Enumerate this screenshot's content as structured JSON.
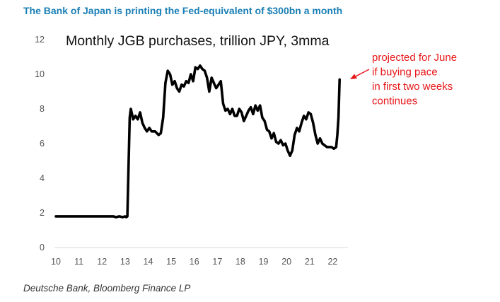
{
  "headline": "The Bank of Japan is printing the Fed-equivalent of $300bn a month",
  "source": "Deutsche Bank, Bloomberg Finance LP",
  "colors": {
    "headline": "#1a7fb5",
    "line": "#000000",
    "annotation": "#e8191b",
    "tick_text": "#555555"
  },
  "chart_data": {
    "type": "line",
    "title": "Monthly JGB purchases, trillion JPY, 3mma",
    "xlabel": "",
    "ylabel": "",
    "xlim": [
      10,
      22.6
    ],
    "ylim": [
      0,
      12
    ],
    "x_ticks": [
      10,
      11,
      12,
      13,
      14,
      15,
      16,
      17,
      18,
      19,
      20,
      21,
      22
    ],
    "x_tick_labels": [
      "10",
      "11",
      "12",
      "13",
      "14",
      "15",
      "16",
      "17",
      "18",
      "19",
      "20",
      "21",
      "22"
    ],
    "y_ticks": [
      0,
      2,
      4,
      6,
      8,
      10,
      12
    ],
    "y_tick_labels": [
      "0",
      "2",
      "4",
      "6",
      "8",
      "10",
      "12"
    ],
    "grid": false,
    "series": [
      {
        "name": "Monthly JGB purchases (3mma)",
        "x": [
          10.0,
          10.5,
          11.0,
          11.5,
          12.0,
          12.3,
          12.5,
          12.6,
          12.75,
          12.9,
          13.0,
          13.05,
          13.1,
          13.2,
          13.25,
          13.35,
          13.45,
          13.55,
          13.65,
          13.75,
          13.85,
          13.95,
          14.05,
          14.15,
          14.3,
          14.45,
          14.55,
          14.65,
          14.75,
          14.85,
          14.95,
          15.05,
          15.15,
          15.25,
          15.35,
          15.45,
          15.55,
          15.65,
          15.75,
          15.85,
          15.95,
          16.05,
          16.15,
          16.25,
          16.35,
          16.45,
          16.55,
          16.65,
          16.75,
          16.85,
          16.95,
          17.05,
          17.15,
          17.25,
          17.35,
          17.45,
          17.55,
          17.65,
          17.75,
          17.85,
          17.95,
          18.05,
          18.15,
          18.25,
          18.35,
          18.45,
          18.55,
          18.65,
          18.75,
          18.85,
          18.95,
          19.05,
          19.15,
          19.25,
          19.35,
          19.45,
          19.55,
          19.65,
          19.75,
          19.85,
          19.95,
          20.05,
          20.15,
          20.25,
          20.35,
          20.45,
          20.55,
          20.65,
          20.75,
          20.85,
          20.95,
          21.05,
          21.15,
          21.25,
          21.35,
          21.45,
          21.55,
          21.65,
          21.75,
          21.85,
          21.95,
          22.05,
          22.15,
          22.2,
          22.25,
          22.3
        ],
        "values": [
          1.8,
          1.8,
          1.8,
          1.8,
          1.8,
          1.8,
          1.8,
          1.75,
          1.8,
          1.75,
          1.8,
          1.75,
          1.8,
          7.5,
          8.0,
          7.4,
          7.6,
          7.4,
          7.8,
          7.2,
          6.9,
          6.7,
          6.9,
          6.7,
          6.7,
          6.5,
          6.6,
          7.5,
          9.5,
          10.2,
          10.0,
          9.4,
          9.6,
          9.2,
          9.0,
          9.4,
          9.3,
          9.6,
          9.5,
          10.0,
          9.6,
          10.4,
          10.3,
          10.5,
          10.3,
          10.2,
          9.8,
          9.0,
          9.8,
          9.5,
          9.2,
          9.4,
          9.6,
          8.3,
          7.9,
          8.0,
          7.7,
          8.0,
          7.6,
          7.6,
          8.0,
          7.8,
          7.3,
          7.6,
          7.9,
          8.1,
          7.7,
          8.2,
          7.9,
          8.2,
          7.5,
          7.3,
          6.8,
          6.7,
          6.3,
          6.6,
          6.1,
          6.0,
          6.2,
          5.9,
          6.0,
          5.6,
          5.3,
          5.6,
          6.5,
          6.9,
          6.7,
          7.2,
          7.6,
          7.4,
          7.8,
          7.7,
          7.2,
          6.5,
          6.0,
          6.3,
          6.0,
          5.9,
          5.8,
          5.8,
          5.8,
          5.7,
          5.8,
          6.5,
          7.5,
          9.7
        ]
      }
    ],
    "annotations": [
      {
        "lines": [
          "projected for June",
          "if buying pace",
          "in first two weeks",
          "continues"
        ],
        "arrow_to_x": 22.3,
        "arrow_to_y": 9.7
      }
    ]
  }
}
